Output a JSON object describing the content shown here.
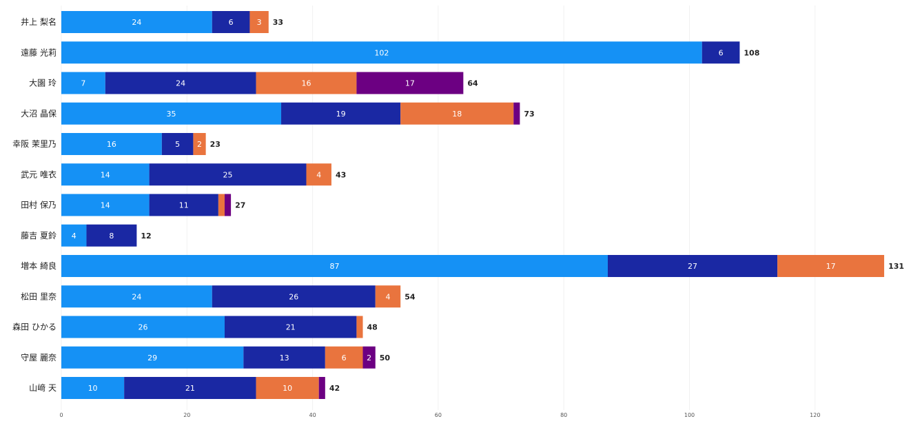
{
  "chart_data": {
    "type": "bar",
    "orientation": "horizontal",
    "stacked": true,
    "title": "",
    "xlabel": "",
    "ylabel": "",
    "xlim": [
      0,
      131
    ],
    "xticks": [
      0,
      20,
      40,
      60,
      80,
      100,
      120
    ],
    "grid": true,
    "legend": "none",
    "categories": [
      "井上 梨名",
      "遠藤 光莉",
      "大園 玲",
      "大沼 晶保",
      "幸阪 茉里乃",
      "武元 唯衣",
      "田村 保乃",
      "藤吉 夏鈴",
      "増本 綺良",
      "松田 里奈",
      "森田 ひかる",
      "守屋 麗奈",
      "山﨑 天"
    ],
    "series": [
      {
        "color": "#1591f5",
        "values": [
          24,
          102,
          7,
          35,
          16,
          14,
          14,
          4,
          87,
          24,
          26,
          29,
          10
        ]
      },
      {
        "color": "#1a28a3",
        "values": [
          6,
          6,
          24,
          19,
          5,
          25,
          11,
          8,
          27,
          26,
          21,
          13,
          21
        ]
      },
      {
        "color": "#e9743e",
        "values": [
          3,
          0,
          16,
          18,
          2,
          4,
          1,
          0,
          17,
          4,
          1,
          6,
          10
        ]
      },
      {
        "color": "#6c0082",
        "values": [
          0,
          0,
          17,
          1,
          0,
          0,
          1,
          0,
          0,
          0,
          0,
          2,
          1
        ]
      }
    ],
    "totals": [
      33,
      108,
      64,
      73,
      23,
      43,
      27,
      12,
      131,
      54,
      48,
      50,
      42
    ]
  }
}
